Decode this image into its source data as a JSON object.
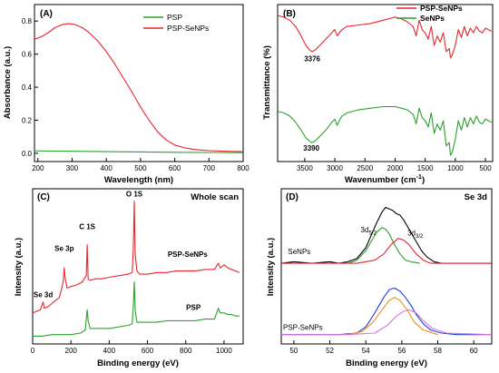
{
  "chart_data": [
    {
      "panel": "(A)",
      "type": "line",
      "xlabel": "Wavelength (nm)",
      "ylabel": "Absorbance (a.u.)",
      "xlim": [
        190,
        800
      ],
      "ylim": [
        -0.05,
        0.9
      ],
      "xticks": [
        200,
        300,
        400,
        500,
        600,
        700,
        800
      ],
      "yticks": [
        0.0,
        0.2,
        0.4,
        0.6,
        0.8
      ],
      "legend_position": "top-right",
      "series": [
        {
          "name": "PSP",
          "color": "#2ca02c",
          "x": [
            190,
            250,
            300,
            400,
            500,
            600,
            700,
            800
          ],
          "y": [
            0.015,
            0.013,
            0.012,
            0.01,
            0.008,
            0.006,
            0.005,
            0.004
          ]
        },
        {
          "name": "PSP-SeNPs",
          "color": "#e8262c",
          "x": [
            190,
            210,
            230,
            250,
            270,
            290,
            310,
            330,
            350,
            375,
            400,
            425,
            450,
            475,
            500,
            525,
            550,
            575,
            600,
            625,
            650,
            675,
            700,
            750,
            800
          ],
          "y": [
            0.69,
            0.705,
            0.73,
            0.76,
            0.778,
            0.785,
            0.778,
            0.76,
            0.73,
            0.68,
            0.615,
            0.54,
            0.455,
            0.37,
            0.28,
            0.2,
            0.13,
            0.08,
            0.05,
            0.035,
            0.025,
            0.02,
            0.016,
            0.012,
            0.01
          ]
        }
      ]
    },
    {
      "panel": "(B)",
      "type": "line",
      "xlabel": "Wavenumber (cm",
      "xlabel_sup": "-1",
      "xlabel_end": ")",
      "ylabel": "Transmittance (%)",
      "xlim": [
        3950,
        380
      ],
      "ylim": [
        0,
        100
      ],
      "xticks": [
        3500,
        3000,
        2500,
        2000,
        1500,
        1000,
        500
      ],
      "legend_position": "top-right",
      "annotations": [
        {
          "text": "3376",
          "x": 3376,
          "y": 64
        },
        {
          "text": "3390",
          "x": 3390,
          "y": 7
        }
      ],
      "series": [
        {
          "name": "PSP-SeNPs",
          "color": "#e8262c",
          "x": [
            3950,
            3850,
            3750,
            3650,
            3560,
            3480,
            3420,
            3376,
            3330,
            3250,
            3150,
            3050,
            3000,
            2960,
            2925,
            2880,
            2800,
            2600,
            2400,
            2200,
            2100,
            2000,
            1900,
            1800,
            1700,
            1650,
            1600,
            1550,
            1500,
            1450,
            1400,
            1350,
            1300,
            1250,
            1200,
            1150,
            1100,
            1080,
            1050,
            1000,
            950,
            900,
            850,
            800,
            750,
            700,
            650,
            600,
            550,
            500,
            450,
            400
          ],
          "y": [
            93,
            92,
            90,
            86,
            80,
            74,
            71,
            70,
            71,
            74,
            78,
            82,
            84,
            80,
            82,
            84,
            86,
            87,
            88,
            90,
            91,
            92,
            91,
            89,
            86,
            80,
            90,
            84,
            82,
            78,
            86,
            74,
            80,
            76,
            82,
            70,
            72,
            66,
            68,
            74,
            84,
            79,
            86,
            80,
            85,
            82,
            86,
            83,
            82,
            85,
            84,
            83
          ]
        },
        {
          "name": "SeNPs",
          "color": "#2ca02c",
          "x": [
            3950,
            3850,
            3750,
            3650,
            3560,
            3480,
            3420,
            3390,
            3330,
            3250,
            3150,
            3050,
            3000,
            2960,
            2925,
            2880,
            2800,
            2600,
            2400,
            2200,
            2100,
            2000,
            1900,
            1800,
            1700,
            1650,
            1600,
            1550,
            1500,
            1450,
            1400,
            1350,
            1300,
            1250,
            1200,
            1150,
            1100,
            1080,
            1050,
            1000,
            950,
            900,
            850,
            800,
            750,
            700,
            650,
            600,
            550,
            500,
            450,
            400
          ],
          "y": [
            32,
            31,
            29,
            25,
            20,
            15,
            13,
            12,
            13,
            16,
            20,
            25,
            27,
            23,
            26,
            29,
            31,
            33,
            34,
            35,
            35,
            35,
            34,
            33,
            30,
            24,
            34,
            28,
            26,
            22,
            31,
            18,
            24,
            20,
            26,
            10,
            12,
            4,
            6,
            14,
            26,
            20,
            28,
            22,
            28,
            24,
            29,
            25,
            24,
            27,
            26,
            25
          ]
        }
      ]
    },
    {
      "panel": "(C)",
      "type": "line",
      "title": "Whole scan",
      "xlabel": "Binding energy (eV)",
      "ylabel": "Intensity (a.u.)",
      "xlim": [
        0,
        1100
      ],
      "ylim": [
        0,
        100
      ],
      "xticks": [
        0,
        200,
        400,
        600,
        800,
        1000
      ],
      "peak_labels": [
        {
          "text": "Se 3d",
          "x": 55,
          "y": 30
        },
        {
          "text": "Se 3p",
          "x": 165,
          "y": 60
        },
        {
          "text": "C 1S",
          "x": 285,
          "y": 74
        },
        {
          "text": "O 1S",
          "x": 531,
          "y": 95
        }
      ],
      "series": [
        {
          "name": "PSP-SeNPs",
          "color": "#e8262c",
          "x": [
            0,
            20,
            40,
            55,
            60,
            80,
            100,
            120,
            140,
            160,
            165,
            170,
            180,
            200,
            230,
            260,
            280,
            285,
            290,
            300,
            330,
            360,
            400,
            450,
            500,
            520,
            526,
            531,
            536,
            545,
            560,
            600,
            650,
            700,
            750,
            800,
            850,
            900,
            950,
            970,
            980,
            990,
            1000,
            1020,
            1040,
            1060,
            1080
          ],
          "y": [
            20,
            21,
            22,
            27,
            23,
            24,
            26,
            28,
            30,
            40,
            49,
            42,
            36,
            37,
            38,
            40,
            44,
            64,
            42,
            41,
            42,
            42,
            43,
            44,
            45,
            46,
            60,
            92,
            58,
            47,
            45,
            45,
            46,
            46,
            47,
            47,
            47,
            48,
            48,
            52,
            49,
            50,
            51,
            49,
            48,
            47,
            46
          ]
        },
        {
          "name": "PSP",
          "color": "#2ca02c",
          "x": [
            0,
            50,
            100,
            150,
            200,
            250,
            275,
            280,
            285,
            290,
            300,
            350,
            400,
            450,
            500,
            520,
            526,
            531,
            536,
            545,
            560,
            600,
            650,
            700,
            750,
            800,
            850,
            900,
            950,
            970,
            980,
            990,
            1000,
            1020,
            1040,
            1060,
            1080
          ],
          "y": [
            5,
            5,
            6,
            6,
            6,
            7,
            9,
            16,
            22,
            15,
            10,
            10,
            10,
            11,
            12,
            13,
            24,
            40,
            22,
            14,
            14,
            14,
            14,
            15,
            15,
            15,
            15,
            16,
            16,
            23,
            20,
            20,
            20,
            19,
            19,
            18,
            18
          ]
        }
      ],
      "series_labels": [
        {
          "text": "PSP-SeNPs",
          "x": 810,
          "y": 56
        },
        {
          "text": "PSP",
          "x": 840,
          "y": 22
        }
      ]
    },
    {
      "panel": "(D)",
      "type": "line",
      "title": "Se 3d",
      "xlabel": "Binding energy (eV)",
      "ylabel": "Intensity (a.u.)",
      "xlim": [
        49.3,
        61
      ],
      "ylim": [
        0,
        100
      ],
      "xticks": [
        50,
        52,
        54,
        56,
        58,
        60
      ],
      "peak_labels": [
        {
          "text": "3d",
          "sub": "5/2",
          "x": 54.15,
          "y": 72
        },
        {
          "text": "3d",
          "sub": "3/2",
          "x": 56.75,
          "y": 70
        }
      ],
      "series_labels": [
        {
          "text": "SeNPs",
          "x": 50.3,
          "y": 58
        },
        {
          "text": "PSP-SeNPs",
          "x": 50.5,
          "y": 9
        }
      ],
      "series": [
        {
          "name": "SeNPs-envelope",
          "color": "#000000",
          "x": [
            49.3,
            50,
            51,
            52,
            52.5,
            53,
            53.5,
            54,
            54.3,
            54.6,
            54.9,
            55.1,
            55.3,
            55.5,
            55.7,
            55.9,
            56.1,
            56.3,
            56.5,
            56.8,
            57.1,
            57.4,
            57.8,
            58.2,
            59,
            60,
            61
          ],
          "y": [
            52,
            53,
            52,
            53,
            52,
            53,
            55,
            62,
            70,
            78,
            85,
            88,
            87,
            86,
            84,
            83,
            80,
            76,
            72,
            66,
            60,
            56,
            53,
            52,
            52,
            52,
            52
          ]
        },
        {
          "name": "SeNPs-fit-3d5/2",
          "color": "#2ca02c",
          "x": [
            53,
            53.5,
            54,
            54.3,
            54.6,
            54.9,
            55.1,
            55.3,
            55.6,
            55.9,
            56.2,
            56.5,
            57
          ],
          "y": [
            52,
            54,
            60,
            66,
            72,
            75,
            74,
            71,
            64,
            58,
            54,
            53,
            52
          ]
        },
        {
          "name": "SeNPs-fit-3d3/2",
          "color": "#e8262c",
          "x": [
            49.3,
            52,
            53.5,
            54.5,
            55,
            55.4,
            55.8,
            56.1,
            56.4,
            56.8,
            57.2,
            57.6,
            58.2,
            61
          ],
          "y": [
            52,
            52,
            52,
            54,
            58,
            64,
            68,
            67,
            64,
            58,
            54,
            52,
            52,
            52
          ]
        },
        {
          "name": "PSP-SeNPs-envelope",
          "color": "#1f3fd6",
          "x": [
            49.3,
            51,
            52.5,
            53.5,
            54,
            54.5,
            55,
            55.3,
            55.6,
            55.9,
            56.2,
            56.5,
            56.8,
            57.2,
            57.6,
            58.2,
            59,
            61
          ],
          "y": [
            6,
            6,
            6,
            7,
            11,
            20,
            30,
            35,
            36,
            34,
            30,
            25,
            19,
            13,
            9,
            7,
            6,
            6
          ]
        },
        {
          "name": "PSP-SeNPs-fit-1",
          "color": "#f28c1f",
          "x": [
            53,
            53.8,
            54.4,
            54.9,
            55.3,
            55.6,
            55.9,
            56.3,
            56.7,
            57.2,
            58
          ],
          "y": [
            6,
            8,
            14,
            22,
            28,
            30,
            28,
            22,
            14,
            9,
            6
          ]
        },
        {
          "name": "PSP-SeNPs-fit-2",
          "color": "#d873e6",
          "x": [
            49.3,
            53,
            54.5,
            55.2,
            55.7,
            56.1,
            56.4,
            56.8,
            57.2,
            57.7,
            58.5,
            61
          ],
          "y": [
            6,
            6,
            7,
            12,
            18,
            21,
            22,
            20,
            15,
            10,
            7,
            6
          ]
        }
      ]
    }
  ]
}
